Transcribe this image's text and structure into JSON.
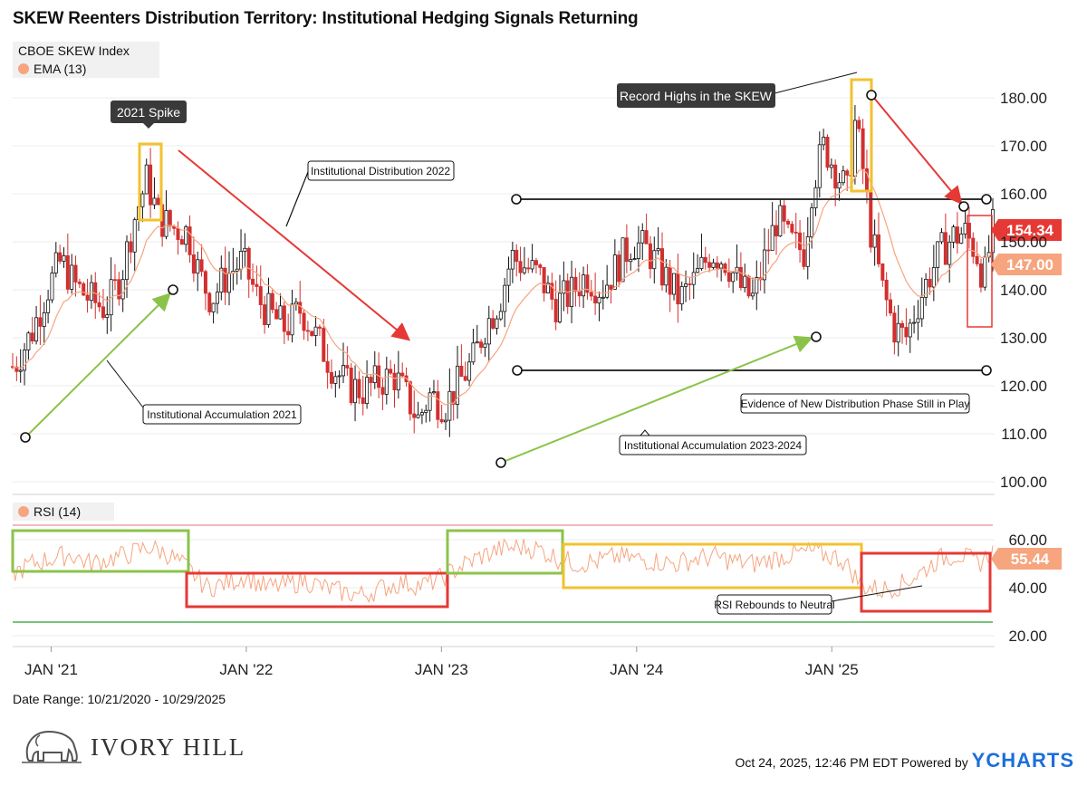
{
  "title": "SKEW Reenters Distribution Territory: Institutional Hedging Signals Returning",
  "legend": {
    "series_main": "CBOE SKEW Index",
    "series_ema": "EMA (13)",
    "series_rsi": "RSI (14)"
  },
  "colors": {
    "up": "#111111",
    "down": "#d32f2f",
    "ema": "#f6a57f",
    "rsi": "#f6a57f",
    "green": "#8bc34a",
    "red_box": "#e53935",
    "yellow_box": "#f2c22e"
  },
  "chart_data": {
    "type": "line",
    "x_range": [
      "2020-10-21",
      "2025-10-29"
    ],
    "x_tick_labels": [
      "JAN '21",
      "JAN '22",
      "JAN '23",
      "JAN '24",
      "JAN '25"
    ],
    "main": {
      "ylim": [
        96,
        188
      ],
      "y_ticks": [
        "180.00",
        "170.00",
        "160.00",
        "150.00",
        "140.00",
        "130.00",
        "120.00",
        "110.00",
        "100.00"
      ],
      "approx_path": [
        [
          2020.81,
          124
        ],
        [
          2020.9,
          131
        ],
        [
          2020.98,
          140
        ],
        [
          2021.05,
          146
        ],
        [
          2021.12,
          141
        ],
        [
          2021.2,
          138
        ],
        [
          2021.28,
          136
        ],
        [
          2021.36,
          143
        ],
        [
          2021.42,
          154
        ],
        [
          2021.49,
          163
        ],
        [
          2021.55,
          155
        ],
        [
          2021.62,
          153
        ],
        [
          2021.7,
          152
        ],
        [
          2021.76,
          143
        ],
        [
          2021.82,
          138
        ],
        [
          2021.9,
          143
        ],
        [
          2021.98,
          146
        ],
        [
          2022.06,
          138
        ],
        [
          2022.12,
          135
        ],
        [
          2022.2,
          132
        ],
        [
          2022.28,
          136
        ],
        [
          2022.36,
          130
        ],
        [
          2022.44,
          124
        ],
        [
          2022.52,
          120
        ],
        [
          2022.6,
          119
        ],
        [
          2022.68,
          121
        ],
        [
          2022.76,
          122
        ],
        [
          2022.83,
          117
        ],
        [
          2022.88,
          113
        ],
        [
          2022.94,
          118
        ],
        [
          2023.02,
          116
        ],
        [
          2023.08,
          120
        ],
        [
          2023.16,
          125
        ],
        [
          2023.22,
          132
        ],
        [
          2023.3,
          138
        ],
        [
          2023.36,
          147
        ],
        [
          2023.42,
          145
        ],
        [
          2023.5,
          143
        ],
        [
          2023.58,
          137
        ],
        [
          2023.66,
          139
        ],
        [
          2023.74,
          143
        ],
        [
          2023.82,
          140
        ],
        [
          2023.9,
          145
        ],
        [
          2023.98,
          150
        ],
        [
          2024.06,
          148
        ],
        [
          2024.14,
          143
        ],
        [
          2024.22,
          138
        ],
        [
          2024.3,
          142
        ],
        [
          2024.38,
          148
        ],
        [
          2024.46,
          146
        ],
        [
          2024.54,
          140
        ],
        [
          2024.6,
          138
        ],
        [
          2024.66,
          147
        ],
        [
          2024.72,
          155
        ],
        [
          2024.78,
          150
        ],
        [
          2024.86,
          148
        ],
        [
          2024.9,
          162
        ],
        [
          2024.96,
          170
        ],
        [
          2025.02,
          165
        ],
        [
          2025.08,
          160
        ],
        [
          2025.12,
          175
        ],
        [
          2025.16,
          165
        ],
        [
          2025.2,
          152
        ],
        [
          2025.26,
          140
        ],
        [
          2025.32,
          132
        ],
        [
          2025.38,
          130
        ],
        [
          2025.44,
          137
        ],
        [
          2025.5,
          143
        ],
        [
          2025.56,
          148
        ],
        [
          2025.62,
          151
        ],
        [
          2025.68,
          152
        ],
        [
          2025.74,
          148
        ],
        [
          2025.78,
          142
        ],
        [
          2025.83,
          154
        ]
      ],
      "last_value": "154.34",
      "ema_last_value": "147.00"
    },
    "rsi": {
      "ylim": [
        15,
        65
      ],
      "y_ticks": [
        "60.00",
        "40.00",
        "20.00"
      ],
      "upper_line": 62.5,
      "lower_line": 26,
      "approx_path": [
        [
          2020.81,
          46
        ],
        [
          2020.9,
          50
        ],
        [
          2021.0,
          52
        ],
        [
          2021.1,
          54
        ],
        [
          2021.2,
          50
        ],
        [
          2021.3,
          52
        ],
        [
          2021.4,
          54
        ],
        [
          2021.5,
          57
        ],
        [
          2021.6,
          54
        ],
        [
          2021.7,
          48
        ],
        [
          2021.8,
          40
        ],
        [
          2021.9,
          42
        ],
        [
          2022.0,
          45
        ],
        [
          2022.1,
          40
        ],
        [
          2022.2,
          41
        ],
        [
          2022.3,
          43
        ],
        [
          2022.4,
          40
        ],
        [
          2022.5,
          38
        ],
        [
          2022.6,
          37
        ],
        [
          2022.7,
          40
        ],
        [
          2022.8,
          42
        ],
        [
          2022.9,
          41
        ],
        [
          2023.0,
          44
        ],
        [
          2023.1,
          49
        ],
        [
          2023.2,
          53
        ],
        [
          2023.3,
          56
        ],
        [
          2023.4,
          57
        ],
        [
          2023.5,
          56
        ],
        [
          2023.6,
          52
        ],
        [
          2023.7,
          50
        ],
        [
          2023.8,
          51
        ],
        [
          2023.9,
          53
        ],
        [
          2024.0,
          52
        ],
        [
          2024.1,
          51
        ],
        [
          2024.2,
          50
        ],
        [
          2024.3,
          52
        ],
        [
          2024.4,
          53
        ],
        [
          2024.5,
          51
        ],
        [
          2024.6,
          50
        ],
        [
          2024.7,
          52
        ],
        [
          2024.8,
          54
        ],
        [
          2024.9,
          55
        ],
        [
          2025.0,
          53
        ],
        [
          2025.05,
          52
        ],
        [
          2025.1,
          47
        ],
        [
          2025.15,
          41
        ],
        [
          2025.25,
          39
        ],
        [
          2025.35,
          41
        ],
        [
          2025.45,
          46
        ],
        [
          2025.55,
          52
        ],
        [
          2025.65,
          54
        ],
        [
          2025.75,
          50
        ],
        [
          2025.83,
          55.44
        ]
      ],
      "last_value": "55.44"
    }
  },
  "annotations": {
    "spike_2021": "2021 Spike",
    "record_highs": "Record Highs in the SKEW",
    "dist_2022": "Institutional Distribution 2022",
    "accum_2021": "Institutional Accumulation 2021",
    "accum_2023_2024": "Institutional Accumulation 2023-2024",
    "new_distribution": "Evidence of New Distribution Phase Still in Play",
    "rsi_rebound": "RSI Rebounds to Neutral"
  },
  "footer": {
    "date_range": "Date Range: 10/21/2020 - 10/29/2025",
    "brand": "IVORY HILL",
    "timestamp": "Oct 24, 2025, 12:46 PM EDT Powered by",
    "ycharts": "YCHARTS"
  }
}
